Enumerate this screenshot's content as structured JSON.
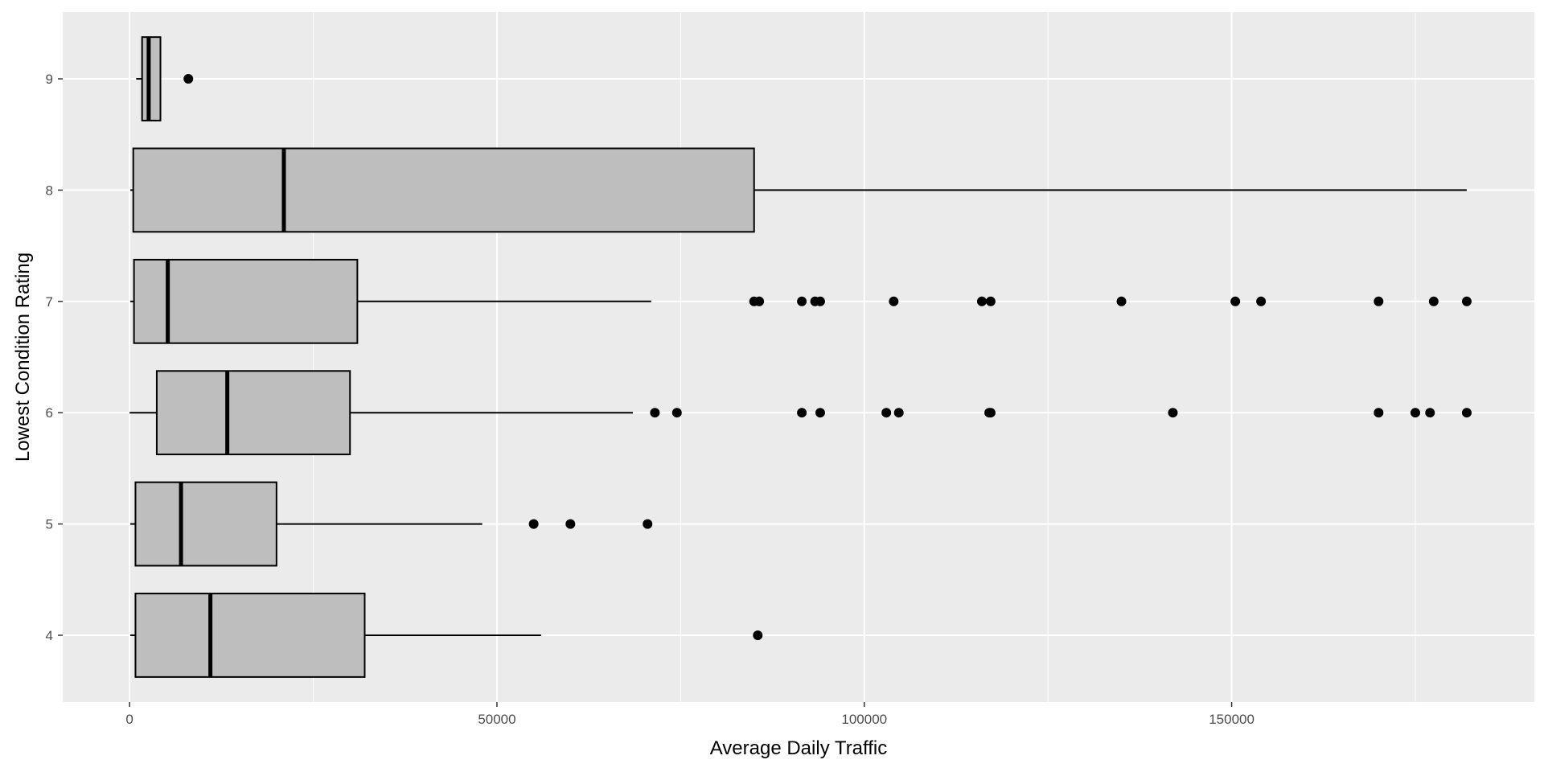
{
  "chart_data": {
    "type": "boxplot",
    "orientation": "horizontal",
    "xlabel": "Average Daily Traffic",
    "ylabel": "Lowest Condition Rating",
    "xlim": [
      -9100,
      191200
    ],
    "x_ticks": [
      0,
      50000,
      100000,
      150000
    ],
    "x_tick_labels": [
      "0",
      "50000",
      "100000",
      "150000"
    ],
    "categories": [
      "4",
      "5",
      "6",
      "7",
      "8",
      "9"
    ],
    "grid": true,
    "legend": "none",
    "colors": {
      "panel_background": "#ebebeb",
      "grid_line": "#ffffff",
      "box_fill": "#bebebe",
      "box_outline": "#000000",
      "outlier": "#000000"
    },
    "boxes": [
      {
        "category": "4",
        "whisker_low": 100,
        "q1": 800,
        "median": 11000,
        "q3": 32000,
        "whisker_high": 56000,
        "outliers": [
          85500
        ]
      },
      {
        "category": "5",
        "whisker_low": 100,
        "q1": 800,
        "median": 7000,
        "q3": 20000,
        "whisker_high": 48000,
        "outliers": [
          55000,
          60000,
          70500
        ]
      },
      {
        "category": "6",
        "whisker_low": 0,
        "q1": 3700,
        "median": 13300,
        "q3": 30000,
        "whisker_high": 68500,
        "outliers": [
          71500,
          74500,
          91500,
          94000,
          103000,
          104700,
          117000,
          117200,
          142000,
          170000,
          175000,
          177000,
          182000
        ]
      },
      {
        "category": "7",
        "whisker_low": 100,
        "q1": 600,
        "median": 5200,
        "q3": 31000,
        "whisker_high": 71000,
        "outliers": [
          85000,
          85700,
          91500,
          93300,
          94000,
          104000,
          116000,
          117200,
          135000,
          150500,
          154000,
          170000,
          177500,
          182000
        ]
      },
      {
        "category": "8",
        "whisker_low": 100,
        "q1": 500,
        "median": 21000,
        "q3": 85000,
        "whisker_high": 182000,
        "outliers": []
      },
      {
        "category": "9",
        "whisker_low": 900,
        "q1": 1700,
        "median": 2600,
        "q3": 4200,
        "whisker_high": 4200,
        "outliers": [
          8000
        ]
      }
    ]
  }
}
